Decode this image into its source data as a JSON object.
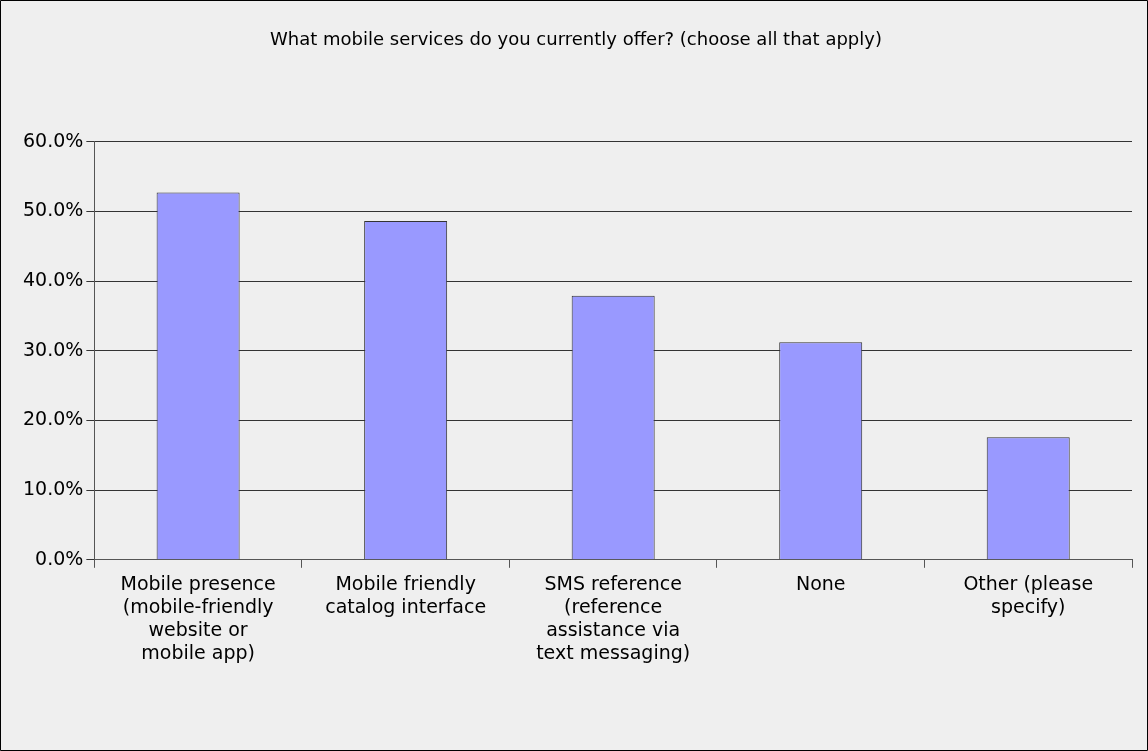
{
  "chart_data": {
    "type": "bar",
    "title": "What mobile services do you currently offer? (choose all that apply)",
    "categories": [
      "Mobile presence\n(mobile-friendly\nwebsite or\nmobile app)",
      "Mobile friendly\ncatalog interface",
      "SMS reference\n(reference\nassistance via\ntext messaging)",
      "None",
      "Other (please\nspecify)"
    ],
    "values": [
      52.7,
      48.6,
      37.9,
      31.2,
      17.6
    ],
    "color": "#9999ff",
    "ylim": [
      0,
      60
    ],
    "yticks": [
      {
        "value": 0,
        "label": "0.0%"
      },
      {
        "value": 10,
        "label": "10.0%"
      },
      {
        "value": 20,
        "label": "20.0%"
      },
      {
        "value": 30,
        "label": "30.0%"
      },
      {
        "value": 40,
        "label": "40.0%"
      },
      {
        "value": 50,
        "label": "50.0%"
      },
      {
        "value": 60,
        "label": "60.0%"
      }
    ],
    "grid": "y",
    "legend": false
  }
}
